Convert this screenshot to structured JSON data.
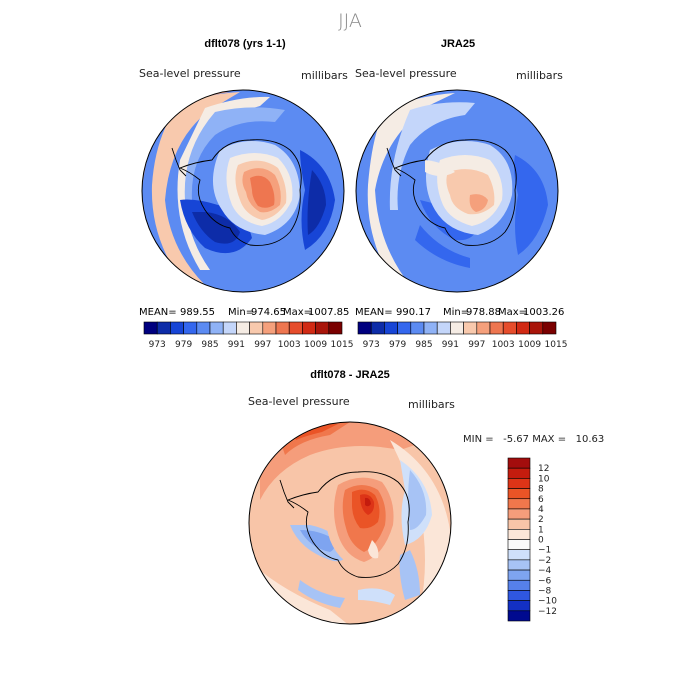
{
  "figure": {
    "title": "JJA",
    "panels": [
      {
        "id": "model",
        "title": "dflt078 (yrs 1-1)",
        "left_label": "Sea-level pressure",
        "right_label": "millibars",
        "stats": {
          "mean_label": "MEAN=",
          "mean": "989.55",
          "min_label": "Min=",
          "min": "974.65",
          "max_label": "Max=",
          "max": "1007.85"
        }
      },
      {
        "id": "obs",
        "title": "JRA25",
        "left_label": "Sea-level pressure",
        "right_label": "millibars",
        "stats": {
          "mean_label": "MEAN=",
          "mean": "990.17",
          "min_label": "Min=",
          "min": "978.88",
          "max_label": "Max=",
          "max": "1003.26"
        }
      },
      {
        "id": "diff",
        "title": "dflt078 - JRA25",
        "left_label": "Sea-level pressure",
        "right_label": "millibars",
        "stats_text": "MIN =   -5.67 MAX =   10.63"
      }
    ],
    "colorbar_top": {
      "tick_labels": [
        "973",
        "979",
        "985",
        "991",
        "997",
        "1003",
        "1009",
        "1015"
      ],
      "colors": [
        "#00007f",
        "#0d2ca8",
        "#1745d6",
        "#3467ee",
        "#5c8bf2",
        "#8fb2f6",
        "#c4d6fa",
        "#f5ece4",
        "#f8c9ad",
        "#f5a07c",
        "#ee7650",
        "#e64d2c",
        "#d12a14",
        "#a9150a",
        "#7a0000"
      ]
    },
    "colorbar_diff": {
      "tick_labels": [
        "12",
        "10",
        "8",
        "6",
        "4",
        "2",
        "1",
        "0",
        "−1",
        "−2",
        "−4",
        "−6",
        "−8",
        "−10",
        "−12"
      ],
      "colors": [
        "#a30d0d",
        "#c41c0e",
        "#dd3417",
        "#ea5426",
        "#f0774c",
        "#f59d7b",
        "#f8c5a8",
        "#fbe6d8",
        "#fafafa",
        "#cfe0fa",
        "#a7c3f5",
        "#7ea4f0",
        "#5680ea",
        "#2f57e0",
        "#1330c4",
        "#000a8f"
      ]
    }
  }
}
